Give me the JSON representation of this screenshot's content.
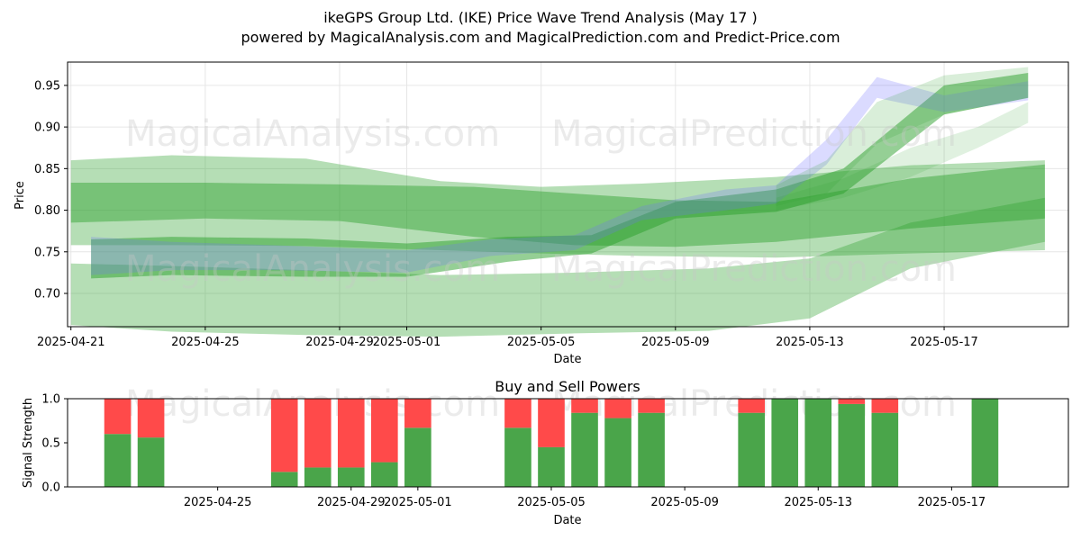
{
  "colors": {
    "band_green": "#2ca02c",
    "band_blue": "#6f6fff",
    "buy_green": "#4aa54a",
    "sell_red": "#ff4a4a",
    "grid": "#e6e6e6"
  },
  "watermarks": {
    "left": "MagicalAnalysis.com",
    "right": "MagicalPrediction.com"
  },
  "chart_data": [
    {
      "type": "area",
      "title": "ikeGPS Group Ltd. (IKE) Price Wave Trend Analysis (May 17 )",
      "subtitle": "powered by MagicalAnalysis.com and MagicalPrediction.com and Predict-Price.com",
      "xlabel": "Date",
      "ylabel": "Price",
      "xlim": [
        -0.1,
        29.7
      ],
      "ylim": [
        0.66,
        0.978
      ],
      "grid": true,
      "x_ticks": [
        {
          "day": 0,
          "label": "2025-04-21"
        },
        {
          "day": 4,
          "label": "2025-04-25"
        },
        {
          "day": 8,
          "label": "2025-04-29"
        },
        {
          "day": 10,
          "label": "2025-05-01"
        },
        {
          "day": 14,
          "label": "2025-05-05"
        },
        {
          "day": 18,
          "label": "2025-05-09"
        },
        {
          "day": 22,
          "label": "2025-05-13"
        },
        {
          "day": 26,
          "label": "2025-05-17"
        }
      ],
      "y_ticks": [
        {
          "value": 0.7,
          "label": "0.70"
        },
        {
          "value": 0.75,
          "label": "0.75"
        },
        {
          "value": 0.8,
          "label": "0.80"
        },
        {
          "value": 0.85,
          "label": "0.85"
        },
        {
          "value": 0.9,
          "label": "0.90"
        },
        {
          "value": 0.95,
          "label": "0.95"
        }
      ],
      "series": [
        {
          "name": "wide-band",
          "color": "green",
          "opacity": 0.35,
          "x": [
            0,
            3,
            7,
            11,
            14,
            17,
            21,
            25,
            29
          ],
          "upper": [
            0.86,
            0.866,
            0.862,
            0.835,
            0.828,
            0.832,
            0.84,
            0.854,
            0.86
          ],
          "lower": [
            0.758,
            0.758,
            0.757,
            0.752,
            0.748,
            0.745,
            0.743,
            0.748,
            0.752
          ]
        },
        {
          "name": "mid-band",
          "color": "green",
          "opacity": 0.45,
          "x": [
            0,
            4,
            8,
            12,
            15,
            18,
            21,
            25,
            29
          ],
          "upper": [
            0.833,
            0.833,
            0.831,
            0.828,
            0.82,
            0.812,
            0.81,
            0.838,
            0.855
          ],
          "lower": [
            0.785,
            0.79,
            0.787,
            0.768,
            0.758,
            0.756,
            0.762,
            0.778,
            0.79
          ]
        },
        {
          "name": "low-band",
          "color": "green",
          "opacity": 0.35,
          "x": [
            0,
            3,
            7,
            11,
            15,
            19,
            22,
            25,
            29
          ],
          "upper": [
            0.736,
            0.733,
            0.728,
            0.722,
            0.725,
            0.73,
            0.742,
            0.785,
            0.815
          ],
          "lower": [
            0.662,
            0.654,
            0.65,
            0.648,
            0.652,
            0.655,
            0.67,
            0.73,
            0.762
          ]
        },
        {
          "name": "trend-band",
          "color": "green",
          "opacity": 0.5,
          "x": [
            0.6,
            3,
            7,
            10,
            13,
            15.5,
            18,
            21,
            23,
            26,
            28.5
          ],
          "upper": [
            0.765,
            0.768,
            0.766,
            0.76,
            0.768,
            0.77,
            0.81,
            0.825,
            0.85,
            0.95,
            0.965
          ],
          "lower": [
            0.718,
            0.722,
            0.72,
            0.72,
            0.738,
            0.748,
            0.79,
            0.798,
            0.82,
            0.915,
            0.935
          ]
        },
        {
          "name": "blue-wave",
          "color": "blue",
          "opacity": 0.25,
          "x": [
            0.6,
            3,
            6,
            10,
            12.5,
            15,
            17,
            19.5,
            21,
            22.5,
            24,
            26,
            28.5
          ],
          "upper": [
            0.768,
            0.762,
            0.758,
            0.752,
            0.765,
            0.77,
            0.805,
            0.825,
            0.83,
            0.885,
            0.96,
            0.938,
            0.955
          ],
          "lower": [
            0.722,
            0.728,
            0.728,
            0.725,
            0.745,
            0.752,
            0.788,
            0.8,
            0.808,
            0.855,
            0.935,
            0.918,
            0.932
          ]
        },
        {
          "name": "green-fan-1",
          "color": "green",
          "opacity": 0.18,
          "x": [
            21,
            22.5,
            24,
            26,
            28.5
          ],
          "upper": [
            0.83,
            0.86,
            0.93,
            0.962,
            0.972
          ],
          "lower": [
            0.805,
            0.82,
            0.88,
            0.915,
            0.935
          ]
        },
        {
          "name": "green-fan-2",
          "color": "green",
          "opacity": 0.15,
          "x": [
            21,
            23,
            25,
            27,
            28.5
          ],
          "upper": [
            0.815,
            0.838,
            0.875,
            0.9,
            0.93
          ],
          "lower": [
            0.8,
            0.815,
            0.84,
            0.875,
            0.905
          ]
        }
      ]
    },
    {
      "type": "bar",
      "title": "Buy and Sell Powers",
      "xlabel": "Date",
      "ylabel": "Signal Strength",
      "ylim": [
        0,
        1.0
      ],
      "xlim": [
        -0.5,
        29.5
      ],
      "grid": false,
      "x_ticks": [
        {
          "day": 4,
          "label": "2025-04-25"
        },
        {
          "day": 8,
          "label": "2025-04-29"
        },
        {
          "day": 10,
          "label": "2025-05-01"
        },
        {
          "day": 14,
          "label": "2025-05-05"
        },
        {
          "day": 18,
          "label": "2025-05-09"
        },
        {
          "day": 22,
          "label": "2025-05-13"
        },
        {
          "day": 26,
          "label": "2025-05-17"
        }
      ],
      "y_ticks": [
        {
          "value": 0.0,
          "label": "0.0"
        },
        {
          "value": 0.5,
          "label": "0.5"
        },
        {
          "value": 1.0,
          "label": "1.0"
        }
      ],
      "bars": [
        {
          "day": 1,
          "date": "2025-04-22",
          "buy": 0.6,
          "sell": 0.4
        },
        {
          "day": 2,
          "date": "2025-04-23",
          "buy": 0.56,
          "sell": 0.44
        },
        {
          "day": 6,
          "date": "2025-04-27",
          "buy": 0.17,
          "sell": 0.83
        },
        {
          "day": 7,
          "date": "2025-04-28",
          "buy": 0.22,
          "sell": 0.78
        },
        {
          "day": 8,
          "date": "2025-04-29",
          "buy": 0.22,
          "sell": 0.78
        },
        {
          "day": 9,
          "date": "2025-04-30",
          "buy": 0.28,
          "sell": 0.72
        },
        {
          "day": 10,
          "date": "2025-05-01",
          "buy": 0.67,
          "sell": 0.33
        },
        {
          "day": 13,
          "date": "2025-05-04",
          "buy": 0.67,
          "sell": 0.33
        },
        {
          "day": 14,
          "date": "2025-05-05",
          "buy": 0.45,
          "sell": 0.55
        },
        {
          "day": 15,
          "date": "2025-05-06",
          "buy": 0.84,
          "sell": 0.16
        },
        {
          "day": 16,
          "date": "2025-05-07",
          "buy": 0.78,
          "sell": 0.22
        },
        {
          "day": 17,
          "date": "2025-05-08",
          "buy": 0.84,
          "sell": 0.16
        },
        {
          "day": 20,
          "date": "2025-05-11",
          "buy": 0.84,
          "sell": 0.16
        },
        {
          "day": 21,
          "date": "2025-05-12",
          "buy": 1.0,
          "sell": 0.0
        },
        {
          "day": 22,
          "date": "2025-05-13",
          "buy": 1.0,
          "sell": 0.0
        },
        {
          "day": 23,
          "date": "2025-05-14",
          "buy": 0.94,
          "sell": 0.06
        },
        {
          "day": 24,
          "date": "2025-05-15",
          "buy": 0.84,
          "sell": 0.16
        },
        {
          "day": 27,
          "date": "2025-05-18",
          "buy": 1.0,
          "sell": 0.0
        }
      ]
    }
  ]
}
